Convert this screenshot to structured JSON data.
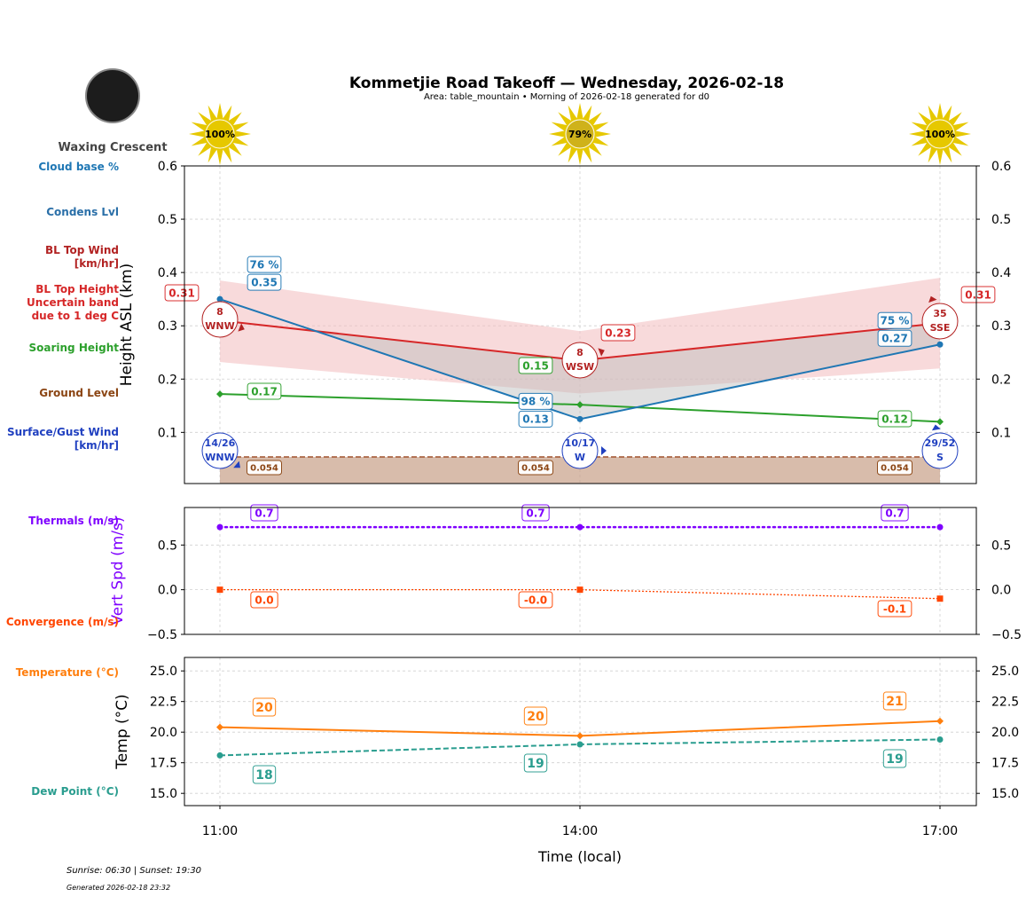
{
  "header": {
    "title": "Kommetjie Road Takeoff — Wednesday, 2026-02-18",
    "subtitle": "Area: table_mountain • Morning of 2026-02-18 generated for d0",
    "moon_phase": "Waxing Crescent"
  },
  "sun": {
    "values": [
      "100%",
      "79%",
      "100%"
    ],
    "color": "#e6c800"
  },
  "footer": {
    "sun_times": "Sunrise: 06:30 | Sunset: 19:30",
    "generated": "Generated 2026-02-18 23:32"
  },
  "legend_labels": [
    {
      "text": "Cloud base %",
      "color": "#1f77b4"
    },
    {
      "text": "Condens Lvl",
      "color": "#2a6fa8"
    },
    {
      "text": "BL Top Wind\n[km/hr]",
      "color": "#b22222"
    },
    {
      "text": "BL Top Height\nUncertain band\ndue to 1 deg C",
      "color": "#d62728"
    },
    {
      "text": "Soaring Height",
      "color": "#2ca02c"
    },
    {
      "text": "Ground Level",
      "color": "#8b4513"
    },
    {
      "text": "Surface/Gust Wind\n[km/hr]",
      "color": "#2040c0"
    },
    {
      "text": "Thermals (m/s)",
      "color": "#7f00ff"
    },
    {
      "text": "Convergence (m/s)",
      "color": "#ff4500"
    },
    {
      "text": "Temperature (°C)",
      "color": "#ff7f0e"
    },
    {
      "text": "Dew Point (°C)",
      "color": "#2a9d8f"
    }
  ],
  "chart_data": [
    {
      "type": "line",
      "ylabel": "Height ASL (km)",
      "x": [
        "11:00",
        "14:00",
        "17:00"
      ],
      "ylim": [
        0.004,
        0.6
      ],
      "yticks": [
        "0.1",
        "0.2",
        "0.3",
        "0.4",
        "0.5",
        "0.6"
      ],
      "grid": true,
      "cloud_base": {
        "values": [
          0.35,
          0.125,
          0.265
        ],
        "labels": [
          "0.35",
          "0.13",
          "0.27"
        ],
        "percent": [
          "76 %",
          "98 %",
          "75 %"
        ],
        "color": "#1f77b4"
      },
      "bl_top": {
        "values": [
          0.31,
          0.235,
          0.305
        ],
        "labels": [
          "0.31",
          "0.23",
          "0.31"
        ],
        "band_upper": [
          0.385,
          0.29,
          0.39
        ],
        "band_lower": [
          0.232,
          0.173,
          0.22
        ],
        "color": "#d62728"
      },
      "soaring": {
        "values": [
          0.172,
          0.152,
          0.12
        ],
        "labels": [
          "0.17",
          "0.15",
          "0.12"
        ],
        "color": "#2ca02c"
      },
      "ground": {
        "value": 0.054,
        "labels": [
          "0.054",
          "0.054",
          "0.054"
        ],
        "color": "#a0522d"
      },
      "bl_wind": [
        {
          "speed": "8",
          "dir": "WNW"
        },
        {
          "speed": "8",
          "dir": "WSW"
        },
        {
          "speed": "35",
          "dir": "SSE"
        }
      ],
      "surface_wind": [
        {
          "speed": "14/26",
          "dir": "WNW"
        },
        {
          "speed": "10/17",
          "dir": "W"
        },
        {
          "speed": "29/52",
          "dir": "S"
        }
      ]
    },
    {
      "type": "line",
      "ylabel": "Vert Spd (m/s)",
      "x": [
        "11:00",
        "14:00",
        "17:00"
      ],
      "ylim": [
        -0.5,
        0.92
      ],
      "yticks": [
        "−0.5",
        "0.0",
        "0.5"
      ],
      "grid": true,
      "series": [
        {
          "key": "thermals",
          "values": [
            0.7,
            0.7,
            0.7
          ],
          "labels": [
            "0.7",
            "0.7",
            "0.7"
          ],
          "color": "#7f00ff"
        },
        {
          "key": "convergence",
          "values": [
            0.0,
            0.0,
            -0.1
          ],
          "labels": [
            "0.0",
            "-0.0",
            "-0.1"
          ],
          "color": "#ff4500"
        }
      ]
    },
    {
      "type": "line",
      "ylabel": "Temp (°C)",
      "xlabel": "Time (local)",
      "x": [
        "11:00",
        "14:00",
        "17:00"
      ],
      "ylim": [
        14.0,
        26.1
      ],
      "yticks": [
        "15.0",
        "17.5",
        "20.0",
        "22.5",
        "25.0"
      ],
      "grid": true,
      "series": [
        {
          "key": "temperature",
          "values": [
            20.4,
            19.7,
            20.9
          ],
          "labels": [
            "20",
            "20",
            "21"
          ],
          "color": "#ff7f0e"
        },
        {
          "key": "dew_point",
          "values": [
            18.1,
            19.0,
            19.4
          ],
          "labels": [
            "18",
            "19",
            "19"
          ],
          "color": "#2a9d8f"
        }
      ]
    }
  ]
}
